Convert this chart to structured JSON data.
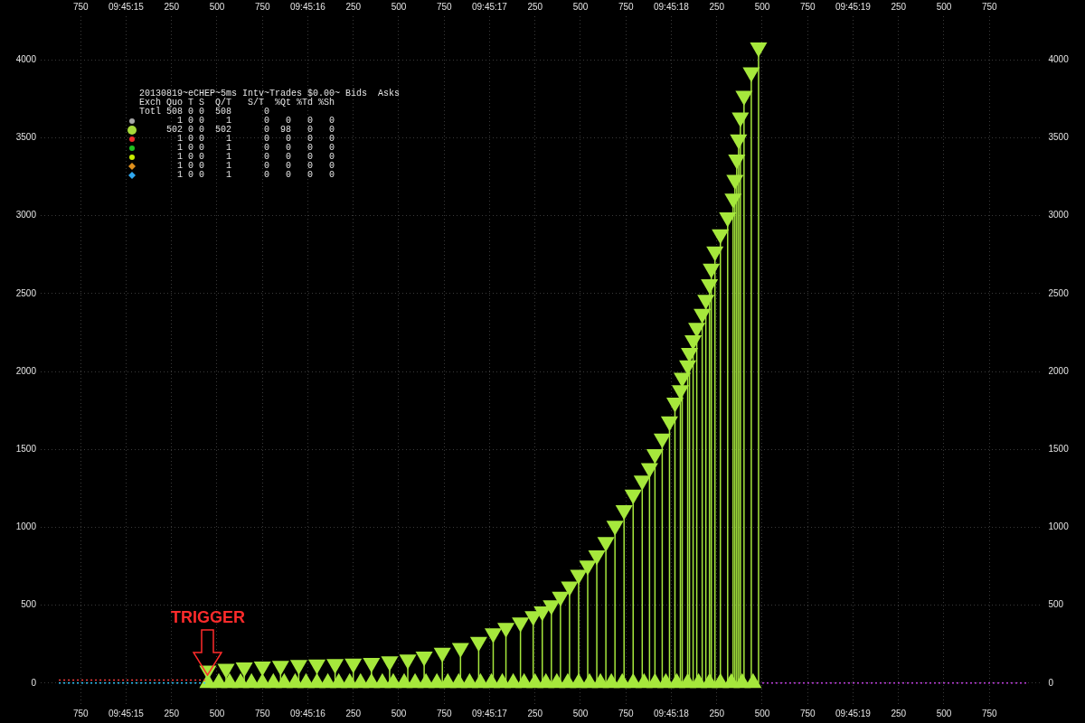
{
  "chart_data": {
    "type": "lollipop",
    "title": "20130819~eCHEP~5ms Intv~Trades $0.00~ Bids  Asks",
    "annotations": [
      "Exch Quo T S  Q/T   S/T  %Qt %Td %Sh",
      "Totl 508 0 0  508      0",
      "1 0 0    1      0   0   0   0",
      "502 0 0  502      0  98   0   0",
      "1 0 0    1      0   0   0   0",
      "1 0 0    1      0   0   0   0",
      "1 0 0    1      0   0   0   0",
      "1 0 0    1      0   0   0   0",
      "1 0 0    1      0   0   0   0",
      {
        "text": "TRIGGER",
        "x": "2013-08-19T09:45:15.450",
        "y": 50
      }
    ],
    "xlim": [
      "2013-08-19T09:45:14.530",
      "2013-08-19T09:45:20.030"
    ],
    "xticks": [
      {
        "value": "2013-08-19T09:45:14.750",
        "label": "750"
      },
      {
        "value": "2013-08-19T09:45:15.000",
        "label": "09:45:15"
      },
      {
        "value": "2013-08-19T09:45:15.250",
        "label": "250"
      },
      {
        "value": "2013-08-19T09:45:15.500",
        "label": "500"
      },
      {
        "value": "2013-08-19T09:45:15.750",
        "label": "750"
      },
      {
        "value": "2013-08-19T09:45:16.000",
        "label": "09:45:16"
      },
      {
        "value": "2013-08-19T09:45:16.250",
        "label": "250"
      },
      {
        "value": "2013-08-19T09:45:16.500",
        "label": "500"
      },
      {
        "value": "2013-08-19T09:45:16.750",
        "label": "750"
      },
      {
        "value": "2013-08-19T09:45:17.000",
        "label": "09:45:17"
      },
      {
        "value": "2013-08-19T09:45:17.250",
        "label": "250"
      },
      {
        "value": "2013-08-19T09:45:17.500",
        "label": "500"
      },
      {
        "value": "2013-08-19T09:45:17.750",
        "label": "750"
      },
      {
        "value": "2013-08-19T09:45:18.000",
        "label": "09:45:18"
      },
      {
        "value": "2013-08-19T09:45:18.250",
        "label": "250"
      },
      {
        "value": "2013-08-19T09:45:18.500",
        "label": "500"
      },
      {
        "value": "2013-08-19T09:45:18.750",
        "label": "750"
      },
      {
        "value": "2013-08-19T09:45:19.000",
        "label": "09:45:19"
      },
      {
        "value": "2013-08-19T09:45:19.250",
        "label": "250"
      },
      {
        "value": "2013-08-19T09:45:19.500",
        "label": "500"
      },
      {
        "value": "2013-08-19T09:45:19.750",
        "label": "750"
      }
    ],
    "x2lim": [
      "2013-08-19T09:45:14.530",
      "2013-08-19T09:45:20.030"
    ],
    "x2ticks": [
      {
        "value": "2013-08-19T09:45:14.750",
        "label": "750"
      },
      {
        "value": "2013-08-19T09:45:15.000",
        "label": "09:45:15"
      },
      {
        "value": "2013-08-19T09:45:15.250",
        "label": "250"
      },
      {
        "value": "2013-08-19T09:45:15.500",
        "label": "500"
      },
      {
        "value": "2013-08-19T09:45:15.750",
        "label": "750"
      },
      {
        "value": "2013-08-19T09:45:16.000",
        "label": "09:45:16"
      },
      {
        "value": "2013-08-19T09:45:16.250",
        "label": "250"
      },
      {
        "value": "2013-08-19T09:45:16.500",
        "label": "500"
      },
      {
        "value": "2013-08-19T09:45:16.750",
        "label": "750"
      },
      {
        "value": "2013-08-19T09:45:17.000",
        "label": "09:45:17"
      },
      {
        "value": "2013-08-19T09:45:17.250",
        "label": "250"
      },
      {
        "value": "2013-08-19T09:45:17.500",
        "label": "500"
      },
      {
        "value": "2013-08-19T09:45:17.750",
        "label": "750"
      },
      {
        "value": "2013-08-19T09:45:18.000",
        "label": "09:45:18"
      },
      {
        "value": "2013-08-19T09:45:18.250",
        "label": "250"
      },
      {
        "value": "2013-08-19T09:45:18.500",
        "label": "500"
      },
      {
        "value": "2013-08-19T09:45:18.750",
        "label": "750"
      },
      {
        "value": "2013-08-19T09:45:19.000",
        "label": "09:45:19"
      },
      {
        "value": "2013-08-19T09:45:19.250",
        "label": "250"
      },
      {
        "value": "2013-08-19T09:45:19.500",
        "label": "500"
      },
      {
        "value": "2013-08-19T09:45:19.750",
        "label": "750"
      }
    ],
    "ylim": [
      -140,
      4280
    ],
    "yticks": [
      0,
      500,
      1000,
      1500,
      2000,
      2500,
      3000,
      3500,
      4000
    ],
    "y2lim": [
      -140,
      4280
    ],
    "y2ticks": [
      0,
      500,
      1000,
      1500,
      2000,
      2500,
      3000,
      3500,
      4000
    ],
    "grid": true,
    "series": [
      {
        "color": "#a6e83c",
        "marker": "triangle",
        "x": [
          "2013-08-19T09:45:15.450",
          "2013-08-19T09:45:15.550",
          "2013-08-19T09:45:15.650",
          "2013-08-19T09:45:15.750",
          "2013-08-19T09:45:15.850",
          "2013-08-19T09:45:15.950",
          "2013-08-19T09:45:16.050",
          "2013-08-19T09:45:16.150",
          "2013-08-19T09:45:16.250",
          "2013-08-19T09:45:16.350",
          "2013-08-19T09:45:16.450",
          "2013-08-19T09:45:16.550",
          "2013-08-19T09:45:16.640",
          "2013-08-19T09:45:16.740",
          "2013-08-19T09:45:16.840",
          "2013-08-19T09:45:16.940",
          "2013-08-19T09:45:17.020",
          "2013-08-19T09:45:17.090",
          "2013-08-19T09:45:17.170",
          "2013-08-19T09:45:17.240",
          "2013-08-19T09:45:17.290",
          "2013-08-19T09:45:17.340",
          "2013-08-19T09:45:17.390",
          "2013-08-19T09:45:17.440",
          "2013-08-19T09:45:17.490",
          "2013-08-19T09:45:17.540",
          "2013-08-19T09:45:17.590",
          "2013-08-19T09:45:17.640",
          "2013-08-19T09:45:17.690",
          "2013-08-19T09:45:17.740",
          "2013-08-19T09:45:17.790",
          "2013-08-19T09:45:17.840",
          "2013-08-19T09:45:17.880",
          "2013-08-19T09:45:17.910",
          "2013-08-19T09:45:17.950",
          "2013-08-19T09:45:17.990",
          "2013-08-19T09:45:18.020",
          "2013-08-19T09:45:18.050",
          "2013-08-19T09:45:18.060",
          "2013-08-19T09:45:18.090",
          "2013-08-19T09:45:18.100",
          "2013-08-19T09:45:18.120",
          "2013-08-19T09:45:18.140",
          "2013-08-19T09:45:18.170",
          "2013-08-19T09:45:18.190",
          "2013-08-19T09:45:18.210",
          "2013-08-19T09:45:18.220",
          "2013-08-19T09:45:18.240",
          "2013-08-19T09:45:18.270",
          "2013-08-19T09:45:18.310",
          "2013-08-19T09:45:18.340",
          "2013-08-19T09:45:18.350",
          "2013-08-19T09:45:18.360",
          "2013-08-19T09:45:18.370",
          "2013-08-19T09:45:18.380",
          "2013-08-19T09:45:18.400",
          "2013-08-19T09:45:18.440",
          "2013-08-19T09:45:18.480"
        ],
        "values": [
          80,
          92,
          100,
          106,
          111,
          116,
          120,
          122,
          125,
          130,
          140,
          152,
          170,
          195,
          225,
          265,
          320,
          355,
          390,
          430,
          460,
          500,
          555,
          620,
          695,
          755,
          820,
          905,
          1010,
          1110,
          1210,
          1300,
          1380,
          1470,
          1570,
          1680,
          1800,
          1880,
          1960,
          2040,
          2120,
          2200,
          2280,
          2370,
          2460,
          2560,
          2660,
          2770,
          2880,
          2990,
          3110,
          3230,
          3360,
          3490,
          3630,
          3770,
          3920,
          4080
        ]
      },
      {
        "type": "scatter",
        "color": "#a6e83c",
        "marker": "triangle",
        "x": [
          "2013-08-19T09:45:15.450",
          "2013-08-19T09:45:15.510",
          "2013-08-19T09:45:15.570",
          "2013-08-19T09:45:15.630",
          "2013-08-19T09:45:15.690",
          "2013-08-19T09:45:15.750",
          "2013-08-19T09:45:15.810",
          "2013-08-19T09:45:15.870",
          "2013-08-19T09:45:15.930",
          "2013-08-19T09:45:15.990",
          "2013-08-19T09:45:16.050",
          "2013-08-19T09:45:16.110",
          "2013-08-19T09:45:16.170",
          "2013-08-19T09:45:16.230",
          "2013-08-19T09:45:16.290",
          "2013-08-19T09:45:16.350",
          "2013-08-19T09:45:16.410",
          "2013-08-19T09:45:16.470",
          "2013-08-19T09:45:16.530",
          "2013-08-19T09:45:16.590",
          "2013-08-19T09:45:16.650",
          "2013-08-19T09:45:16.710",
          "2013-08-19T09:45:16.770",
          "2013-08-19T09:45:16.830",
          "2013-08-19T09:45:16.890",
          "2013-08-19T09:45:16.950",
          "2013-08-19T09:45:17.010",
          "2013-08-19T09:45:17.070",
          "2013-08-19T09:45:17.130",
          "2013-08-19T09:45:17.190",
          "2013-08-19T09:45:17.250",
          "2013-08-19T09:45:17.310",
          "2013-08-19T09:45:17.370",
          "2013-08-19T09:45:17.430",
          "2013-08-19T09:45:17.490",
          "2013-08-19T09:45:17.550",
          "2013-08-19T09:45:17.610",
          "2013-08-19T09:45:17.670",
          "2013-08-19T09:45:17.730",
          "2013-08-19T09:45:17.790",
          "2013-08-19T09:45:17.850",
          "2013-08-19T09:45:17.910",
          "2013-08-19T09:45:17.970",
          "2013-08-19T09:45:18.030",
          "2013-08-19T09:45:18.090",
          "2013-08-19T09:45:18.150",
          "2013-08-19T09:45:18.210",
          "2013-08-19T09:45:18.270",
          "2013-08-19T09:45:18.330",
          "2013-08-19T09:45:18.390",
          "2013-08-19T09:45:18.450"
        ],
        "values": [
          0,
          0,
          0,
          0,
          0,
          0,
          0,
          0,
          0,
          0,
          0,
          0,
          0,
          0,
          0,
          0,
          0,
          0,
          0,
          0,
          0,
          0,
          0,
          0,
          0,
          0,
          0,
          0,
          0,
          0,
          0,
          0,
          0,
          0,
          0,
          0,
          0,
          0,
          0,
          0,
          0,
          0,
          0,
          0,
          0,
          0,
          0,
          0,
          0,
          0,
          0
        ]
      },
      {
        "type": "line",
        "color": "#ff3c3c",
        "line_style": "dotted",
        "x": [
          "2013-08-19T09:45:14.630",
          "2013-08-19T09:45:15.450"
        ],
        "values": [
          20,
          20
        ]
      },
      {
        "type": "line",
        "color": "#33c8ff",
        "line_style": "dotted",
        "x": [
          "2013-08-19T09:45:14.630",
          "2013-08-19T09:45:15.450"
        ],
        "values": [
          0,
          0
        ]
      },
      {
        "type": "line",
        "color": "#c040e0",
        "line_style": "dotted",
        "x": [
          "2013-08-19T09:45:18.500",
          "2013-08-19T09:45:19.960"
        ],
        "values": [
          0,
          0
        ]
      }
    ]
  }
}
